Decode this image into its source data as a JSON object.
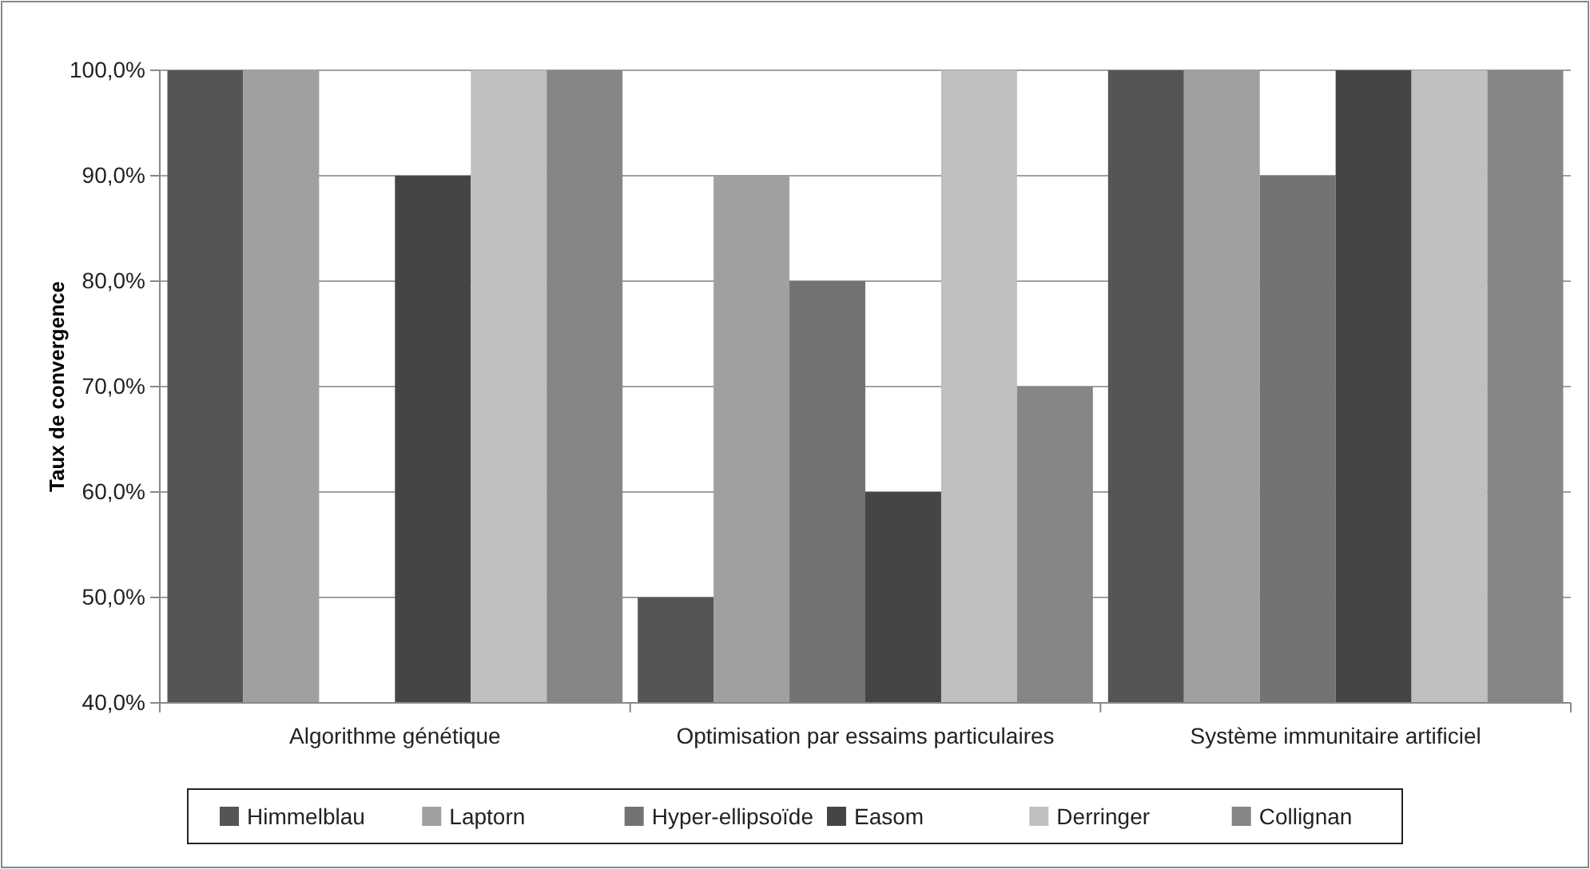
{
  "chart_data": {
    "type": "bar",
    "ylabel": "Taux de convergence",
    "categories": [
      "Algorithme génétique",
      "Optimisation par essaims particulaires",
      "Système immunitaire artificiel"
    ],
    "series": [
      {
        "name": "Himmelblau",
        "color": "#555555",
        "values": [
          100,
          50,
          100
        ]
      },
      {
        "name": "Laptorn",
        "color": "#a0a0a0",
        "values": [
          100,
          90,
          100
        ]
      },
      {
        "name": "Hyper-ellipsoïde",
        "color": "#737373",
        "values": [
          null,
          80,
          90
        ]
      },
      {
        "name": "Easom",
        "color": "#454545",
        "values": [
          90,
          60,
          100
        ]
      },
      {
        "name": "Derringer",
        "color": "#c0c0c0",
        "values": [
          100,
          100,
          100
        ]
      },
      {
        "name": "Collignan",
        "color": "#868686",
        "values": [
          100,
          70,
          100
        ]
      }
    ],
    "ylim": [
      40,
      100
    ],
    "yticks": [
      {
        "value": 40,
        "label": "40,0%"
      },
      {
        "value": 50,
        "label": "50,0%"
      },
      {
        "value": 60,
        "label": "60,0%"
      },
      {
        "value": 70,
        "label": "70,0%"
      },
      {
        "value": 80,
        "label": "80,0%"
      },
      {
        "value": 90,
        "label": "90,0%"
      },
      {
        "value": 100,
        "label": "100,0%"
      }
    ],
    "grid": "y",
    "legend": "bottom"
  }
}
